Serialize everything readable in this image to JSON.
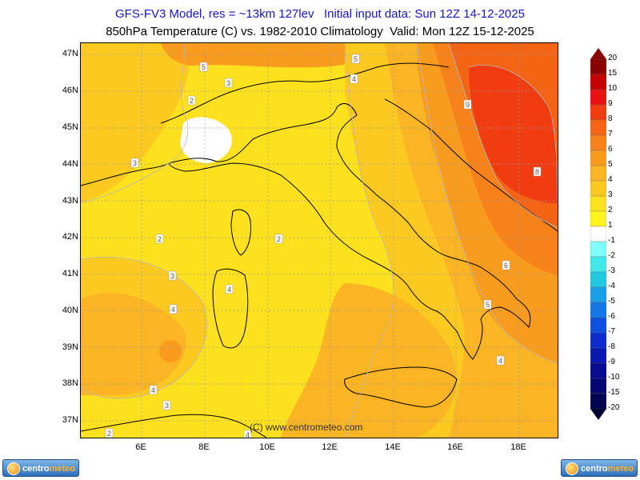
{
  "header": {
    "line1": "GFS-FV3 Model, res = ~13km 127lev   Initial input data: Sun 12Z 14-12-2025",
    "line2": "850hPa Temperature (C) vs. 1982-2010 Climatology  Valid: Mon 12Z 15-12-2025"
  },
  "axes": {
    "lat_labels": [
      "47N",
      "46N",
      "45N",
      "44N",
      "43N",
      "42N",
      "41N",
      "40N",
      "39N",
      "38N",
      "37N"
    ],
    "lon_labels": [
      "6E",
      "8E",
      "10E",
      "12E",
      "14E",
      "16E",
      "18E"
    ]
  },
  "colorbar": {
    "labels": [
      "20",
      "15",
      "10",
      "9",
      "8",
      "7",
      "6",
      "5",
      "4",
      "3",
      "2",
      "1",
      "-1",
      "-2",
      "-3",
      "-4",
      "-5",
      "-6",
      "-7",
      "-8",
      "-9",
      "-10",
      "-15",
      "-20"
    ],
    "colors": [
      "#8b0000",
      "#c40000",
      "#e81010",
      "#f03c10",
      "#f46414",
      "#f7821a",
      "#f99c1e",
      "#fbb423",
      "#fcc921",
      "#fde11e",
      "#fff41b",
      "#ffffff",
      "#7fffff",
      "#40e8e8",
      "#20c8e0",
      "#1aa0e8",
      "#1478e8",
      "#1050e0",
      "#0c2cd0",
      "#0818b0",
      "#060c90",
      "#040870",
      "#020450",
      "#000030"
    ]
  },
  "contour_labels": [
    "5",
    "3",
    "5",
    "4",
    "2",
    "9",
    "3",
    "8",
    "2",
    "2",
    "4",
    "6",
    "5",
    "3",
    "4",
    "4",
    "4",
    "3",
    "2",
    "4"
  ],
  "copyright": "(C) www.centrometeo.com",
  "logos": {
    "left_text_a": "centro",
    "left_text_b": "meteo",
    "right_text_a": "centro",
    "right_text_b": "meteo"
  }
}
